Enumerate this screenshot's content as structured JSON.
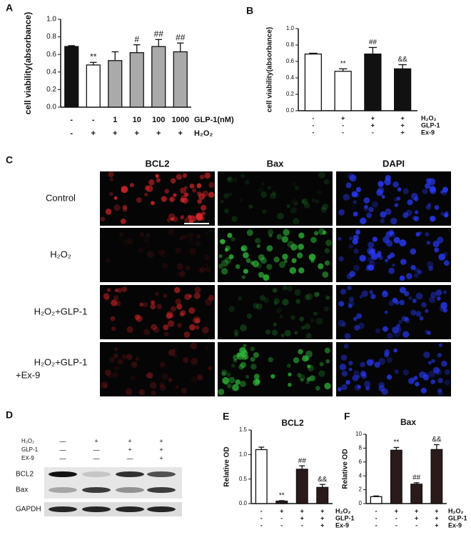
{
  "panels": [
    "A",
    "B",
    "C",
    "D",
    "E",
    "F"
  ],
  "chart_data": [
    {
      "type": "bar",
      "y_label": "cell viability(absorbance)",
      "ylim": [
        0,
        1.0
      ],
      "yticks": [
        {
          "value": 0,
          "label": "0.0"
        },
        0.2,
        0.4,
        0.6,
        0.8,
        {
          "value": 1.0,
          "label": "1.0"
        }
      ],
      "values": [
        0.69,
        0.48,
        0.53,
        0.62,
        0.69,
        0.63
      ],
      "errors": [
        0.01,
        0.03,
        0.1,
        0.09,
        0.08,
        0.1
      ],
      "annotations": [
        null,
        "**",
        null,
        "#",
        "##",
        "##"
      ],
      "colors": [
        "#111111",
        "#ffffff",
        "#aaaaaa",
        "#aaaaaa",
        "#aaaaaa",
        "#aaaaaa"
      ],
      "conditions": [
        {
          "label": "GLP-1(nM)",
          "marks": [
            "-",
            "-",
            "1",
            "10",
            "100",
            "1000"
          ]
        },
        {
          "label": "H₂O₂",
          "marks": [
            "-",
            "+",
            "+",
            "+",
            "+",
            "+"
          ]
        }
      ]
    },
    {
      "type": "bar",
      "y_label": "cell viability(absorbance)",
      "ylim": [
        0,
        1.0
      ],
      "yticks": [
        {
          "value": 0,
          "label": "0.0"
        },
        0.2,
        0.4,
        0.6,
        0.8,
        {
          "value": 1.0,
          "label": "1.0"
        }
      ],
      "values": [
        0.69,
        0.48,
        0.69,
        0.51
      ],
      "errors": [
        0.01,
        0.03,
        0.08,
        0.05
      ],
      "annotations": [
        null,
        "**",
        "##",
        "&&"
      ],
      "colors": [
        "#ffffff",
        "#ffffff",
        "#111111",
        "#111111"
      ],
      "conditions": [
        {
          "label": "H₂O₂",
          "marks": [
            "-",
            "+",
            "+",
            "+"
          ]
        },
        {
          "label": "GLP-1",
          "marks": [
            "-",
            "-",
            "+",
            "+"
          ]
        },
        {
          "label": "Ex-9",
          "marks": [
            "-",
            "-",
            "-",
            "+"
          ]
        }
      ]
    },
    {
      "type": "bar",
      "title": "BCL2",
      "y_label": "Relative OD",
      "ylim": [
        0,
        1.5
      ],
      "yticks": [
        {
          "value": 0,
          "label": "0.0"
        },
        0.5,
        {
          "value": 1.0,
          "label": "1.0"
        },
        1.5
      ],
      "values": [
        1.1,
        0.05,
        0.7,
        0.33
      ],
      "errors": [
        0.05,
        0.01,
        0.07,
        0.06
      ],
      "annotations": [
        null,
        "**",
        "##",
        "&&"
      ],
      "colors": [
        "#ffffff",
        "#2b1a1a",
        "#2b1a1a",
        "#2b1a1a"
      ],
      "conditions": [
        {
          "label": "H₂O₂",
          "marks": [
            "-",
            "+",
            "+",
            "+"
          ]
        },
        {
          "label": "GLP-1",
          "marks": [
            "-",
            "-",
            "+",
            "+"
          ]
        },
        {
          "label": "Ex-9",
          "marks": [
            "-",
            "-",
            "-",
            "+"
          ]
        }
      ]
    },
    {
      "type": "bar",
      "title": "Bax",
      "y_label": "Relative OD",
      "ylim": [
        0,
        10
      ],
      "yticks": [
        0,
        2,
        4,
        6,
        8,
        10
      ],
      "values": [
        1.0,
        7.7,
        2.8,
        7.8
      ],
      "errors": [
        0.1,
        0.4,
        0.2,
        0.7
      ],
      "annotations": [
        null,
        "**",
        "##",
        "&&"
      ],
      "colors": [
        "#ffffff",
        "#2b1a1a",
        "#2b1a1a",
        "#2b1a1a"
      ],
      "conditions": [
        {
          "label": "H₂O₂",
          "marks": [
            "-",
            "+",
            "+",
            "+"
          ]
        },
        {
          "label": "GLP-1",
          "marks": [
            "-",
            "-",
            "+",
            "+"
          ]
        },
        {
          "label": "Ex-9",
          "marks": [
            "-",
            "-",
            "-",
            "+"
          ]
        }
      ]
    }
  ],
  "microscopy": {
    "columns": [
      {
        "label": "BCL2",
        "color": "#e0282a"
      },
      {
        "label": "Bax",
        "color": "#2fb83a"
      },
      {
        "label": "DAPI",
        "color": "#2a3cff"
      }
    ],
    "rows": [
      [
        "Control"
      ],
      [
        "H₂O₂"
      ],
      [
        "H₂O₂+GLP-1"
      ],
      [
        "H₂O₂+GLP-1",
        "+Ex-9"
      ]
    ]
  },
  "blot": {
    "conditions": [
      {
        "label": "H₂O₂",
        "marks": [
          "—",
          "+",
          "+",
          "+"
        ]
      },
      {
        "label": "GLP-1",
        "marks": [
          "—",
          "—",
          "+",
          "+"
        ]
      },
      {
        "label": "EX-9",
        "marks": [
          "—",
          "—",
          "—",
          "+"
        ]
      }
    ],
    "bands": [
      "BCL2",
      "Bax",
      "GAPDH"
    ]
  }
}
